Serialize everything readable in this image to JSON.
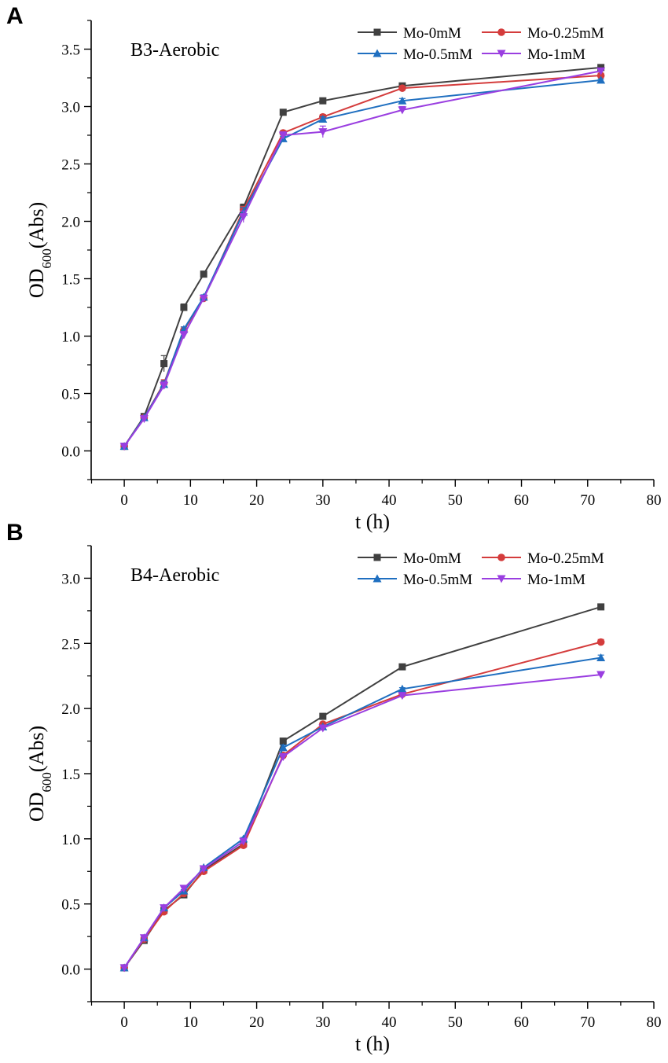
{
  "chart_data": [
    {
      "type": "line",
      "panel": "A",
      "annotation": "B3-Aerobic",
      "xlabel": "t (h)",
      "ylabel_main": "OD",
      "ylabel_sub": "600",
      "ylabel_suffix": "(Abs)",
      "xlim": [
        -5,
        80
      ],
      "ylim": [
        -0.25,
        3.75
      ],
      "xticks": [
        0,
        10,
        20,
        30,
        40,
        50,
        60,
        70,
        80
      ],
      "yticks": [
        0.0,
        0.5,
        1.0,
        1.5,
        2.0,
        2.5,
        3.0,
        3.5
      ],
      "ytick_labels": [
        "0.0",
        "0.5",
        "1.0",
        "1.5",
        "2.0",
        "2.5",
        "3.0",
        "3.5"
      ],
      "x": [
        0,
        3,
        6,
        9,
        12,
        18,
        24,
        30,
        42,
        72
      ],
      "series": [
        {
          "name": "Mo-0mM",
          "color": "#404040",
          "marker": "square",
          "values": [
            0.04,
            0.3,
            0.76,
            1.25,
            1.54,
            2.12,
            2.95,
            3.05,
            3.18,
            3.34
          ],
          "errors": [
            0.01,
            0.01,
            0.07,
            0.03,
            0.02,
            0.03,
            0.01,
            0.01,
            0.01,
            0.02
          ]
        },
        {
          "name": "Mo-0.25mM",
          "color": "#d43c3c",
          "marker": "circle",
          "values": [
            0.04,
            0.29,
            0.59,
            1.05,
            1.33,
            2.1,
            2.77,
            2.91,
            3.16,
            3.27
          ],
          "errors": [
            0.01,
            0.01,
            0.03,
            0.03,
            0.02,
            0.03,
            0.02,
            0.02,
            0.02,
            0.02
          ]
        },
        {
          "name": "Mo-0.5mM",
          "color": "#1f6fc0",
          "marker": "triangle-up",
          "values": [
            0.04,
            0.29,
            0.58,
            1.06,
            1.34,
            2.08,
            2.72,
            2.89,
            3.05,
            3.23
          ],
          "errors": [
            0.01,
            0.01,
            0.03,
            0.02,
            0.02,
            0.04,
            0.02,
            0.02,
            0.02,
            0.01
          ]
        },
        {
          "name": "Mo-1mM",
          "color": "#9a3ee0",
          "marker": "triangle-down",
          "values": [
            0.04,
            0.28,
            0.57,
            1.01,
            1.33,
            2.04,
            2.75,
            2.78,
            2.97,
            3.31
          ],
          "errors": [
            0.01,
            0.01,
            0.03,
            0.03,
            0.02,
            0.05,
            0.03,
            0.05,
            0.03,
            0.02
          ]
        }
      ]
    },
    {
      "type": "line",
      "panel": "B",
      "annotation": "B4-Aerobic",
      "xlabel": "t (h)",
      "ylabel_main": "OD",
      "ylabel_sub": "600",
      "ylabel_suffix": "(Abs)",
      "xlim": [
        -5,
        80
      ],
      "ylim": [
        -0.25,
        3.25
      ],
      "xticks": [
        0,
        10,
        20,
        30,
        40,
        50,
        60,
        70,
        80
      ],
      "yticks": [
        0.0,
        0.5,
        1.0,
        1.5,
        2.0,
        2.5,
        3.0
      ],
      "ytick_labels": [
        "0.0",
        "0.5",
        "1.0",
        "1.5",
        "2.0",
        "2.5",
        "3.0"
      ],
      "x": [
        0,
        3,
        6,
        9,
        12,
        18,
        24,
        30,
        42,
        72
      ],
      "series": [
        {
          "name": "Mo-0mM",
          "color": "#404040",
          "marker": "square",
          "values": [
            0.01,
            0.22,
            0.45,
            0.57,
            0.76,
            0.96,
            1.75,
            1.94,
            2.32,
            2.78
          ],
          "errors": [
            0.01,
            0.01,
            0.01,
            0.01,
            0.01,
            0.01,
            0.01,
            0.01,
            0.01,
            0.01
          ]
        },
        {
          "name": "Mo-0.25mM",
          "color": "#d43c3c",
          "marker": "circle",
          "values": [
            0.01,
            0.23,
            0.44,
            0.58,
            0.75,
            0.95,
            1.64,
            1.88,
            2.11,
            2.51
          ],
          "errors": [
            0.01,
            0.01,
            0.01,
            0.01,
            0.01,
            0.01,
            0.02,
            0.01,
            0.01,
            0.02
          ]
        },
        {
          "name": "Mo-0.5mM",
          "color": "#1f6fc0",
          "marker": "triangle-up",
          "values": [
            0.01,
            0.24,
            0.47,
            0.6,
            0.78,
            1.0,
            1.7,
            1.86,
            2.15,
            2.39
          ],
          "errors": [
            0.01,
            0.01,
            0.01,
            0.01,
            0.01,
            0.01,
            0.02,
            0.01,
            0.01,
            0.02
          ]
        },
        {
          "name": "Mo-1mM",
          "color": "#9a3ee0",
          "marker": "triangle-down",
          "values": [
            0.01,
            0.24,
            0.47,
            0.62,
            0.77,
            0.98,
            1.63,
            1.85,
            2.1,
            2.26
          ],
          "errors": [
            0.01,
            0.01,
            0.01,
            0.01,
            0.01,
            0.01,
            0.02,
            0.01,
            0.01,
            0.01
          ]
        }
      ]
    }
  ]
}
